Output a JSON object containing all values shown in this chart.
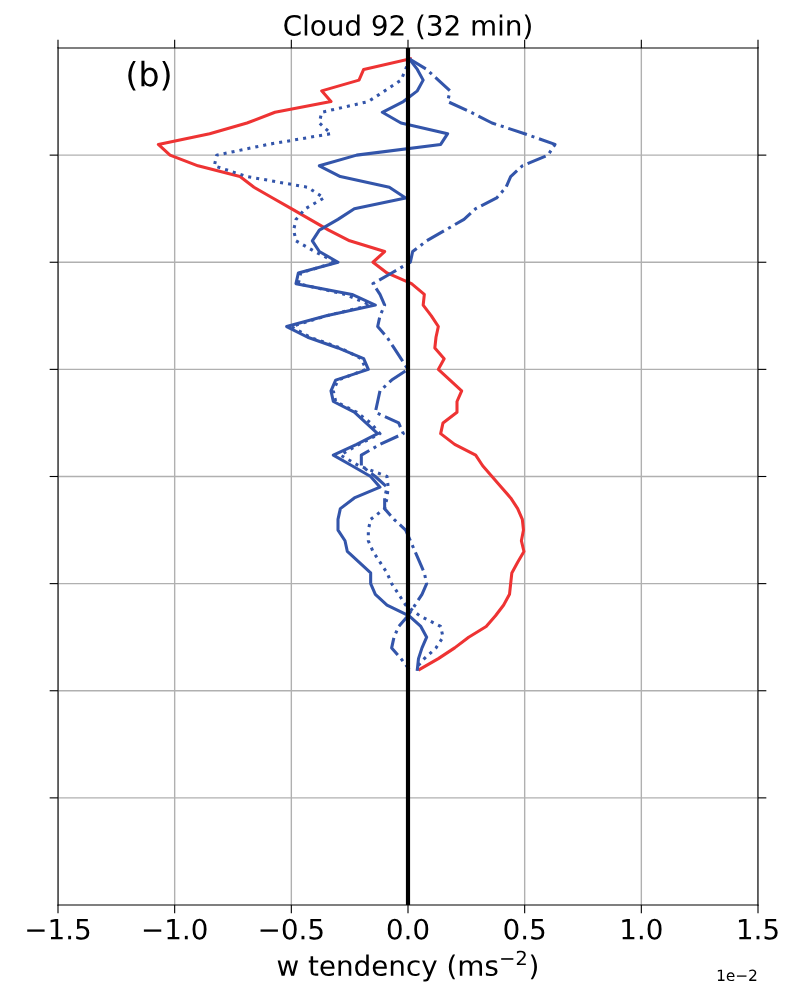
{
  "chart_data": {
    "type": "line",
    "orientation": "horizontal",
    "title": "Cloud 92 (32 min)",
    "xlabel": "w tendency (ms$^{−2}$)",
    "annotations": [
      "(b)",
      "1e−2"
    ],
    "categories": [
      null,
      null,
      null,
      null,
      null,
      null,
      null,
      null,
      null,
      null,
      null,
      null,
      null,
      null,
      null,
      null,
      null,
      null,
      null,
      null,
      null,
      null,
      null,
      null,
      null,
      null,
      null,
      null,
      null,
      null,
      null,
      null,
      null,
      null,
      null,
      null,
      null,
      null,
      null,
      null,
      null,
      null,
      null,
      null,
      null,
      null,
      null,
      null,
      null,
      null,
      null,
      null,
      null,
      null,
      null,
      null,
      null,
      null
    ],
    "series": [
      {
        "color": "#ee3333",
        "line_style": "solid",
        "values": [
          0.01,
          -0.19,
          -0.21,
          -0.37,
          -0.33,
          -0.57,
          -0.69,
          -0.85,
          -1.07,
          -1.02,
          -0.9,
          -0.72,
          -0.66,
          -0.58,
          -0.5,
          -0.42,
          -0.34,
          -0.25,
          -0.1,
          -0.15,
          -0.09,
          0.015,
          0.07,
          0.065,
          0.1,
          0.13,
          0.12,
          0.115,
          0.155,
          0.13,
          0.18,
          0.23,
          0.21,
          0.21,
          0.15,
          0.14,
          0.2,
          0.29,
          0.32,
          0.36,
          0.4,
          0.44,
          0.47,
          0.49,
          0.495,
          0.486,
          0.497,
          0.47,
          0.445,
          0.44,
          0.435,
          0.41,
          0.375,
          0.335,
          0.26,
          0.2,
          0.13,
          0.05
        ]
      },
      {
        "color": "#3355aa",
        "line_style": "solid",
        "values": [
          0.005,
          0.04,
          0.065,
          0.04,
          -0.02,
          -0.11,
          -0.03,
          0.17,
          0.14,
          -0.22,
          -0.38,
          -0.29,
          -0.08,
          -0.01,
          -0.23,
          -0.3,
          -0.38,
          -0.41,
          -0.38,
          -0.3,
          -0.47,
          -0.48,
          -0.24,
          -0.14,
          -0.35,
          -0.52,
          -0.43,
          -0.3,
          -0.19,
          -0.17,
          -0.31,
          -0.33,
          -0.32,
          -0.23,
          -0.18,
          -0.13,
          -0.22,
          -0.32,
          -0.24,
          -0.16,
          -0.12,
          -0.23,
          -0.29,
          -0.3,
          -0.3,
          -0.27,
          -0.26,
          -0.21,
          -0.16,
          -0.16,
          -0.14,
          -0.09,
          0.005,
          0.055,
          0.08,
          0.06,
          0.045,
          0.04
        ]
      },
      {
        "color": "#3355aa",
        "line_style": "dotted",
        "values": [
          0.005,
          -0.01,
          -0.03,
          -0.1,
          -0.17,
          -0.37,
          -0.38,
          -0.33,
          -0.6,
          -0.82,
          -0.83,
          -0.69,
          -0.43,
          -0.36,
          -0.44,
          -0.48,
          -0.49,
          -0.48,
          -0.4,
          -0.31,
          -0.46,
          -0.47,
          -0.27,
          -0.16,
          -0.35,
          -0.5,
          -0.42,
          -0.29,
          -0.2,
          -0.18,
          -0.3,
          -0.32,
          -0.31,
          -0.22,
          -0.16,
          -0.12,
          -0.21,
          -0.29,
          -0.21,
          -0.09,
          -0.085,
          -0.09,
          -0.1,
          -0.16,
          -0.17,
          -0.17,
          -0.15,
          -0.12,
          -0.09,
          -0.07,
          -0.04,
          -0.01,
          0.05,
          0.14,
          0.15,
          0.12,
          0.07,
          0.03
        ]
      },
      {
        "color": "#3355aa",
        "line_style": "dashdot",
        "values": [
          0.005,
          0.08,
          0.13,
          0.18,
          0.17,
          0.27,
          0.36,
          0.5,
          0.63,
          0.6,
          0.49,
          0.44,
          0.42,
          0.38,
          0.29,
          0.24,
          0.16,
          0.08,
          0.02,
          0.01,
          -0.07,
          -0.15,
          -0.12,
          -0.1,
          -0.12,
          -0.13,
          -0.09,
          -0.06,
          -0.03,
          0.0,
          -0.07,
          -0.12,
          -0.13,
          -0.14,
          -0.04,
          -0.02,
          -0.12,
          -0.2,
          -0.2,
          -0.14,
          -0.09,
          -0.1,
          -0.1,
          -0.06,
          -0.01,
          0.01,
          0.03,
          0.05,
          0.07,
          0.08,
          0.06,
          0.03,
          0.0,
          -0.04,
          -0.06,
          -0.07,
          -0.03,
          0.005
        ]
      }
    ],
    "ref_lines": [
      {
        "axis": "x",
        "value": 0,
        "color": "#000000",
        "line_style": "solid"
      }
    ],
    "xlim": [
      -1.5,
      1.5
    ],
    "xticks": [
      {
        "value": -1.5,
        "label": "−1.5"
      },
      {
        "value": -1.0,
        "label": "−1.0"
      },
      {
        "value": -0.5,
        "label": "−0.5"
      },
      {
        "value": 0.0,
        "label": "0.0"
      },
      {
        "value": 0.5,
        "label": "0.5"
      },
      {
        "value": 1.0,
        "label": "1.0"
      },
      {
        "value": 1.5,
        "label": "1.5"
      }
    ],
    "tick_labels": "x",
    "grid": true,
    "marker": "none",
    "legend": false
  }
}
